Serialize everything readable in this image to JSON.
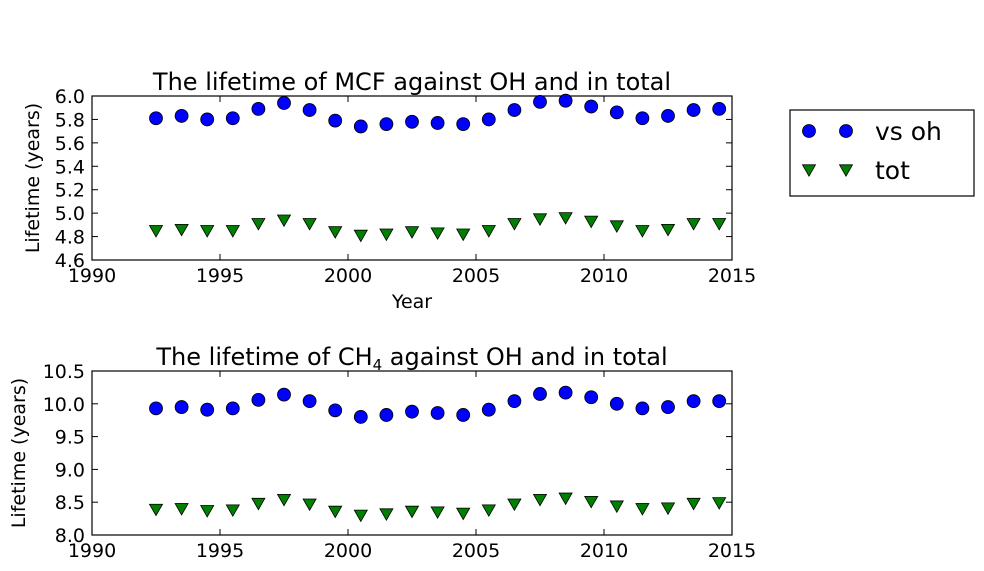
{
  "chart_data": [
    {
      "type": "scatter",
      "title": "The lifetime of MCF against OH and in total",
      "xlabel": "Year",
      "ylabel": "Lifetime (years)",
      "xlim": [
        1990,
        2015
      ],
      "ylim": [
        4.6,
        6.0
      ],
      "xticks": [
        "1990",
        "1995",
        "2000",
        "2005",
        "2010",
        "2015"
      ],
      "yticks": [
        "4.6",
        "4.8",
        "5.0",
        "5.2",
        "5.4",
        "5.6",
        "5.8",
        "6.0"
      ],
      "x": [
        1992.5,
        1993.5,
        1994.5,
        1995.5,
        1996.5,
        1997.5,
        1998.5,
        1999.5,
        2000.5,
        2001.5,
        2002.5,
        2003.5,
        2004.5,
        2005.5,
        2006.5,
        2007.5,
        2008.5,
        2009.5,
        2010.5,
        2011.5,
        2012.5,
        2013.5,
        2014.5
      ],
      "series": [
        {
          "name": "vs oh",
          "marker": "circle",
          "color": "#0000ff",
          "values": [
            5.81,
            5.83,
            5.8,
            5.81,
            5.89,
            5.94,
            5.88,
            5.79,
            5.74,
            5.76,
            5.78,
            5.77,
            5.76,
            5.8,
            5.88,
            5.95,
            5.96,
            5.91,
            5.86,
            5.81,
            5.83,
            5.88,
            5.89
          ]
        },
        {
          "name": "tot",
          "marker": "triangle-down",
          "color": "#008000",
          "values": [
            4.85,
            4.86,
            4.85,
            4.85,
            4.91,
            4.94,
            4.91,
            4.84,
            4.81,
            4.82,
            4.84,
            4.83,
            4.82,
            4.85,
            4.91,
            4.95,
            4.96,
            4.93,
            4.89,
            4.85,
            4.86,
            4.91,
            4.91
          ]
        }
      ]
    },
    {
      "type": "scatter",
      "title": "The lifetime of CH",
      "title_sub": "4",
      "title_rest": " against OH and in total",
      "xlabel": "",
      "ylabel": "Lifetime (years)",
      "xlim": [
        1990,
        2015
      ],
      "ylim": [
        8.0,
        10.5
      ],
      "xticks": [
        "1990",
        "1995",
        "2000",
        "2005",
        "2010",
        "2015"
      ],
      "yticks": [
        "8.0",
        "8.5",
        "9.0",
        "9.5",
        "10.0",
        "10.5"
      ],
      "x": [
        1992.5,
        1993.5,
        1994.5,
        1995.5,
        1996.5,
        1997.5,
        1998.5,
        1999.5,
        2000.5,
        2001.5,
        2002.5,
        2003.5,
        2004.5,
        2005.5,
        2006.5,
        2007.5,
        2008.5,
        2009.5,
        2010.5,
        2011.5,
        2012.5,
        2013.5,
        2014.5
      ],
      "series": [
        {
          "name": "vs oh",
          "marker": "circle",
          "color": "#0000ff",
          "values": [
            9.93,
            9.95,
            9.91,
            9.93,
            10.06,
            10.14,
            10.04,
            9.9,
            9.8,
            9.83,
            9.88,
            9.86,
            9.83,
            9.91,
            10.04,
            10.15,
            10.17,
            10.1,
            10.0,
            9.93,
            9.95,
            10.04,
            10.04
          ]
        },
        {
          "name": "tot",
          "marker": "triangle-down",
          "color": "#008000",
          "values": [
            8.39,
            8.4,
            8.37,
            8.38,
            8.48,
            8.54,
            8.47,
            8.36,
            8.3,
            8.32,
            8.36,
            8.35,
            8.33,
            8.38,
            8.47,
            8.54,
            8.56,
            8.51,
            8.44,
            8.4,
            8.41,
            8.48,
            8.49
          ]
        }
      ]
    }
  ],
  "legend": {
    "placement": "right",
    "entries": [
      {
        "label": "vs oh",
        "marker": "circle",
        "color": "#0000ff"
      },
      {
        "label": "tot",
        "marker": "triangle-down",
        "color": "#008000"
      }
    ]
  }
}
